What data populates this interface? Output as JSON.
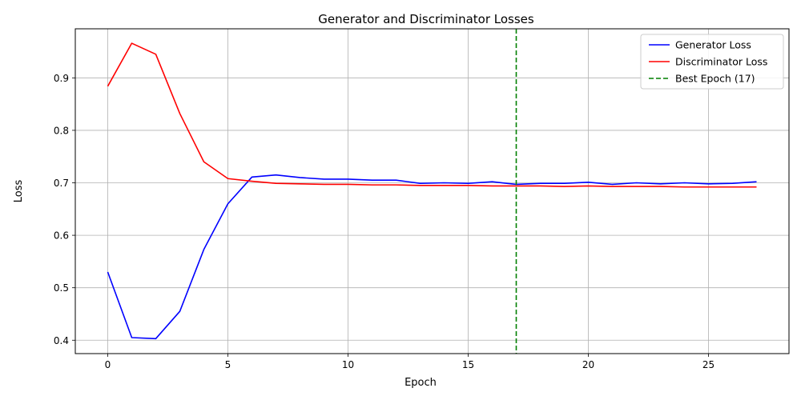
{
  "chart_data": {
    "type": "line",
    "title": "Generator and Discriminator Losses",
    "xlabel": "Epoch",
    "ylabel": "Loss",
    "xlim": [
      -1.35,
      28.35
    ],
    "ylim": [
      0.3745,
      0.9935
    ],
    "xticks": [
      0,
      5,
      10,
      15,
      20,
      25
    ],
    "yticks": [
      0.4,
      0.5,
      0.6,
      0.7,
      0.8,
      0.9
    ],
    "xtick_labels": [
      "0",
      "5",
      "10",
      "15",
      "20",
      "25"
    ],
    "ytick_labels": [
      "0.4",
      "0.5",
      "0.6",
      "0.7",
      "0.8",
      "0.9"
    ],
    "grid": true,
    "legend_position": "top-right",
    "x": [
      0,
      1,
      2,
      3,
      4,
      5,
      6,
      7,
      8,
      9,
      10,
      11,
      12,
      13,
      14,
      15,
      16,
      17,
      18,
      19,
      20,
      21,
      22,
      23,
      24,
      25,
      26,
      27
    ],
    "series": [
      {
        "name": "Generator Loss",
        "color": "#0000ff",
        "style": "solid",
        "values": [
          0.53,
          0.405,
          0.403,
          0.455,
          0.573,
          0.66,
          0.711,
          0.715,
          0.71,
          0.707,
          0.707,
          0.705,
          0.705,
          0.699,
          0.7,
          0.699,
          0.702,
          0.697,
          0.699,
          0.699,
          0.701,
          0.697,
          0.7,
          0.698,
          0.7,
          0.698,
          0.699,
          0.702
        ]
      },
      {
        "name": "Discriminator Loss",
        "color": "#ff0000",
        "style": "solid",
        "values": [
          0.884,
          0.966,
          0.945,
          0.832,
          0.74,
          0.708,
          0.703,
          0.699,
          0.698,
          0.697,
          0.697,
          0.696,
          0.696,
          0.695,
          0.695,
          0.695,
          0.694,
          0.694,
          0.694,
          0.693,
          0.694,
          0.693,
          0.693,
          0.693,
          0.692,
          0.692,
          0.692,
          0.692
        ]
      }
    ],
    "vline": {
      "name": "Best Epoch (17)",
      "x": 17,
      "color": "#008000",
      "style": "dashed"
    }
  }
}
